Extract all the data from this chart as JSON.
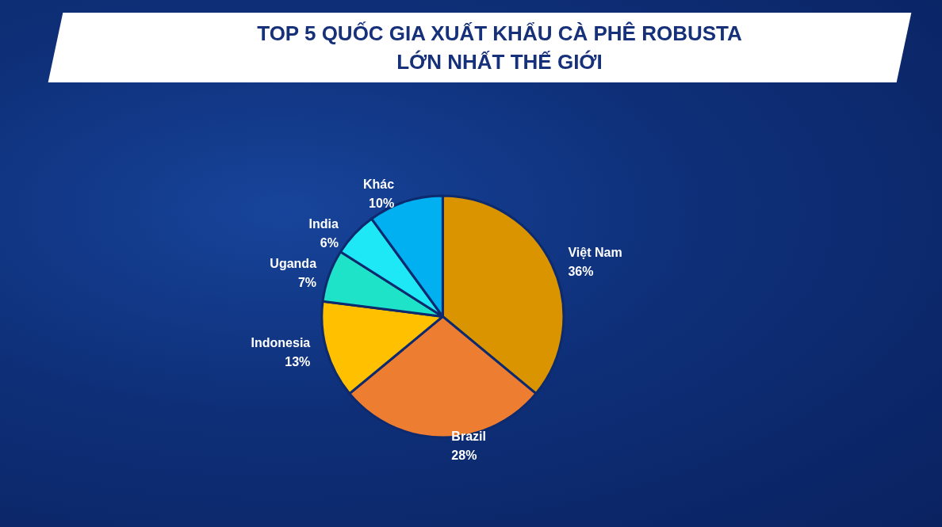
{
  "chart_data": {
    "type": "pie",
    "title": "TOP 5 QUỐC GIA XUẤT KHẨU CÀ PHÊ ROBUSTA\nLỚN NHẤT THẾ GIỚI",
    "categories": [
      "Việt Nam",
      "Brazil",
      "Indonesia",
      "Uganda",
      "India",
      "Khác"
    ],
    "values": [
      36,
      28,
      13,
      7,
      6,
      10
    ],
    "value_labels": [
      "36%",
      "28%",
      "13%",
      "7%",
      "6%",
      "10%"
    ],
    "colors": [
      "#d99400",
      "#ed7d31",
      "#ffc000",
      "#1ee3c8",
      "#1ee8f5",
      "#00b0f0"
    ],
    "legend": false
  }
}
